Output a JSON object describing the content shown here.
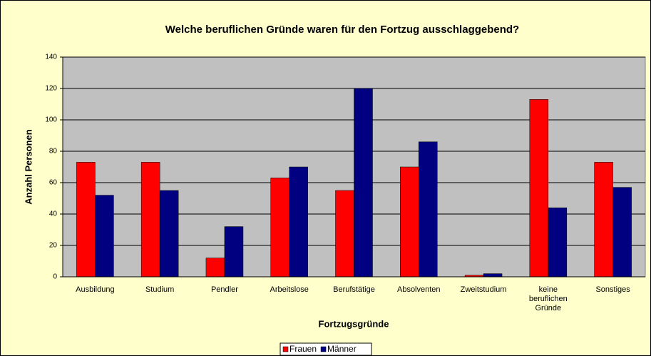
{
  "chart_data": {
    "type": "bar",
    "title": "Welche beruflichen Gründe waren für den Fortzug ausschlaggebend?",
    "x_label": "Fortzugsgründe",
    "y_label": "Anzahl Personen",
    "categories": [
      "Ausbildung",
      "Studium",
      "Pendler",
      "Arbeitslose",
      "Berufstätige",
      "Absolventen",
      "Zweitstudium",
      "keine beruflichen Gründe",
      "Sonstiges"
    ],
    "series": [
      {
        "name": "Frauen",
        "color": "#ff0000",
        "values": [
          73,
          73,
          12,
          63,
          55,
          70,
          1,
          113,
          73
        ]
      },
      {
        "name": "Männer",
        "color": "#000080",
        "values": [
          52,
          55,
          32,
          70,
          120,
          86,
          2,
          44,
          57
        ]
      }
    ],
    "ylim": [
      0,
      140
    ],
    "yticks": [
      0,
      20,
      40,
      60,
      80,
      100,
      120,
      140
    ],
    "grid": true,
    "legend": "bottom"
  }
}
